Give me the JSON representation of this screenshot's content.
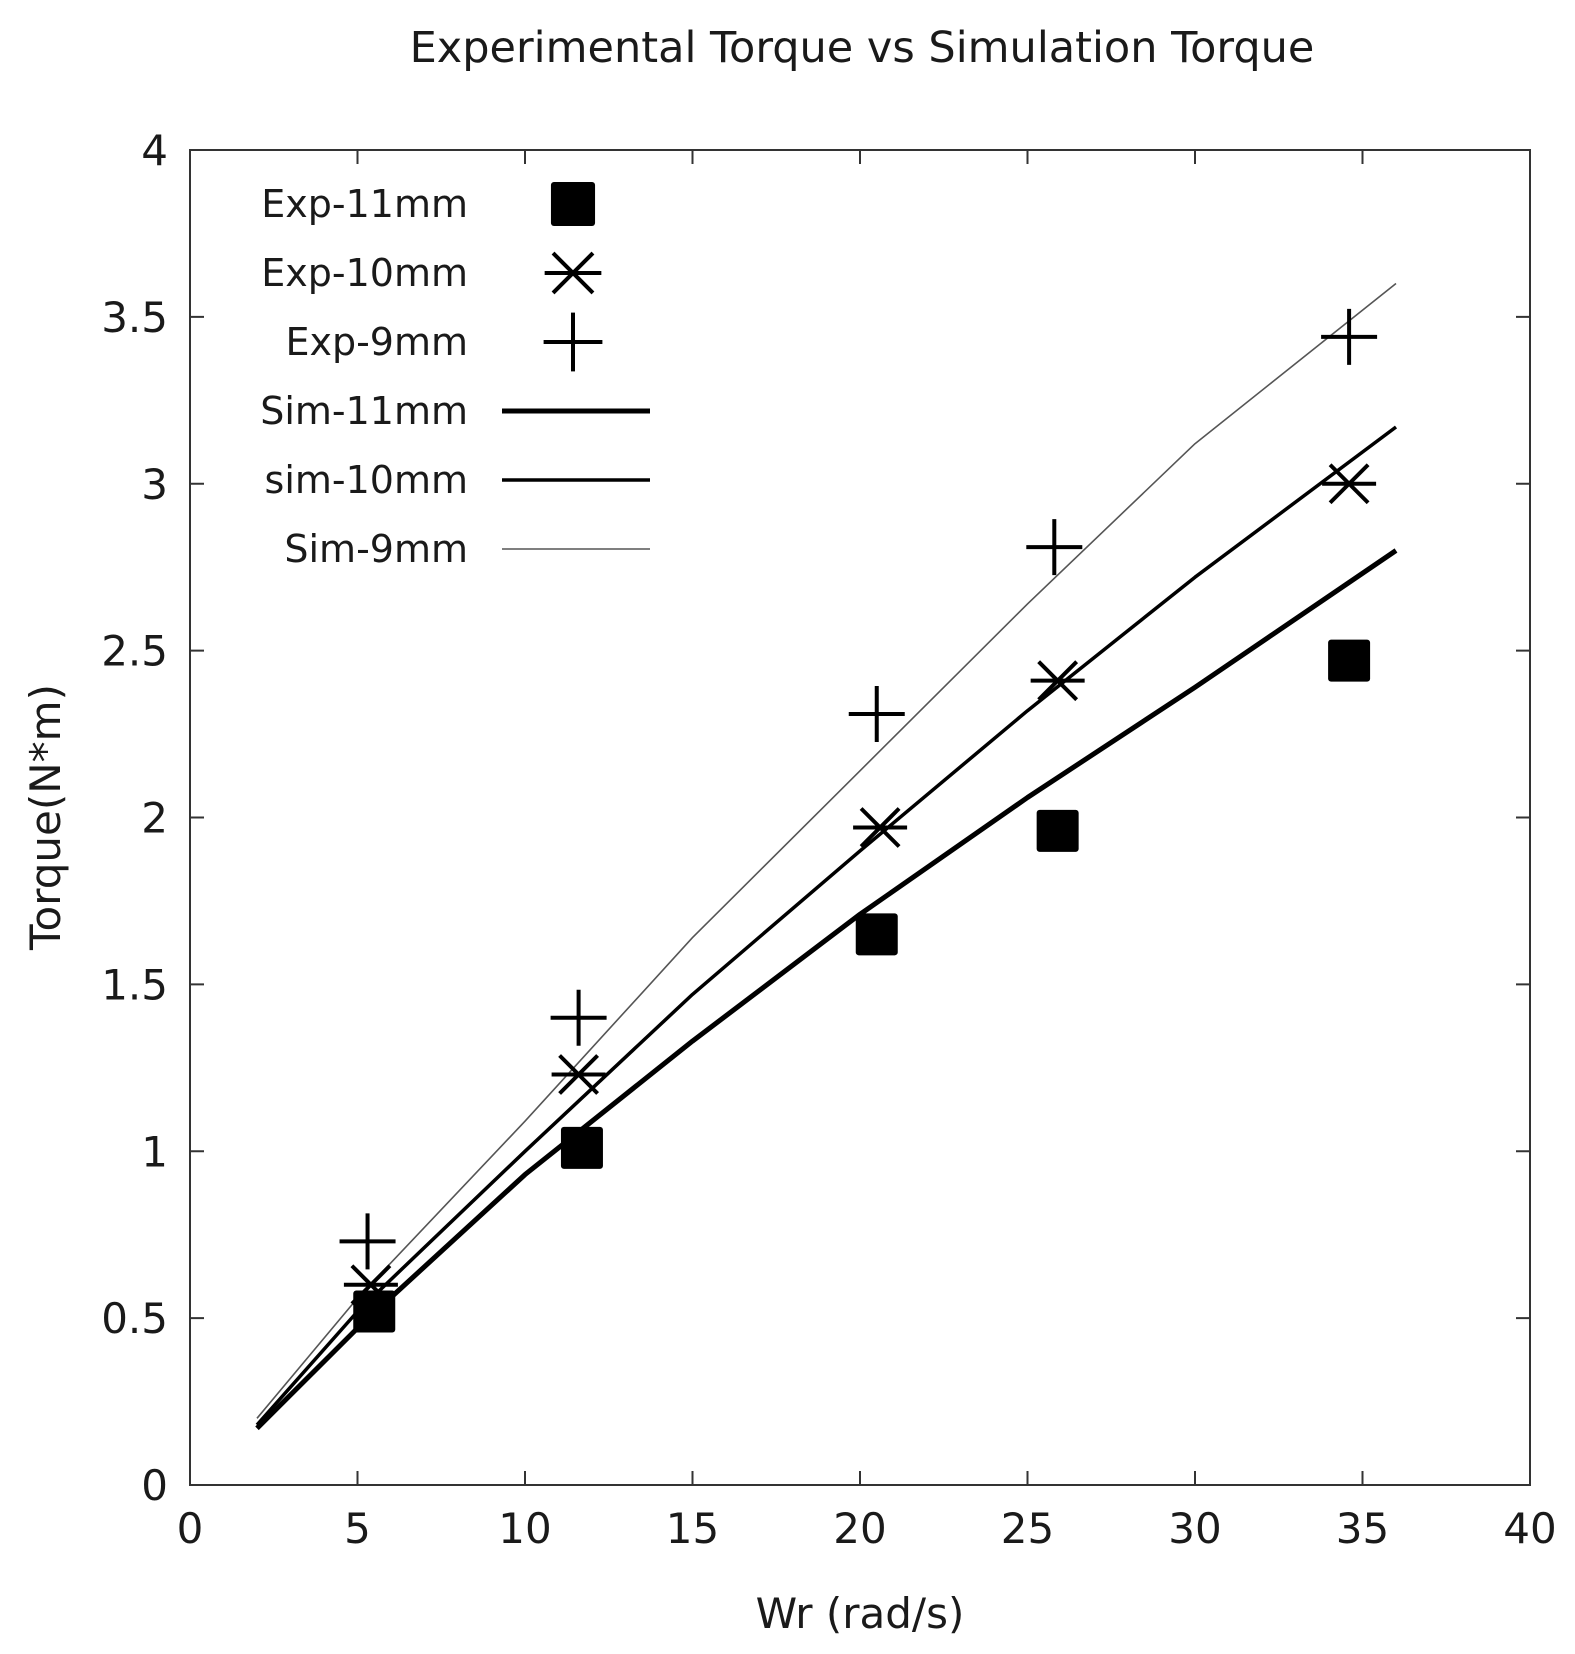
{
  "chart_data": {
    "type": "scatter",
    "title": "Experimental Torque vs Simulation Torque",
    "xlabel": "Wr (rad/s)",
    "ylabel": "Torque(N*m)",
    "xlim": [
      0,
      40
    ],
    "ylim": [
      0,
      4
    ],
    "xticks": [
      0,
      5,
      10,
      15,
      20,
      25,
      30,
      35,
      40
    ],
    "yticks": [
      0,
      0.5,
      1,
      1.5,
      2,
      2.5,
      3,
      3.5,
      4
    ],
    "xtick_labels": [
      "0",
      "5",
      "10",
      "15",
      "20",
      "25",
      "30",
      "35",
      "40"
    ],
    "ytick_labels": [
      "0",
      "0.5",
      "1",
      "1.5",
      "2",
      "2.5",
      "3",
      "3.5",
      "4"
    ],
    "grid": false,
    "legend_position": "top-left",
    "series": [
      {
        "name": "Exp-11mm",
        "kind": "marker",
        "marker": "square",
        "x": [
          5.5,
          11.7,
          20.5,
          25.9,
          34.6
        ],
        "y": [
          0.52,
          1.01,
          1.65,
          1.96,
          2.47
        ]
      },
      {
        "name": "Exp-10mm",
        "kind": "marker",
        "marker": "asterisk",
        "x": [
          5.4,
          11.6,
          20.6,
          25.9,
          34.6
        ],
        "y": [
          0.6,
          1.23,
          1.97,
          2.41,
          3.0
        ]
      },
      {
        "name": "Exp-9mm",
        "kind": "marker",
        "marker": "plus",
        "x": [
          5.3,
          11.6,
          20.5,
          25.8,
          34.6
        ],
        "y": [
          0.73,
          1.4,
          2.31,
          2.81,
          3.44
        ]
      },
      {
        "name": "Sim-11mm",
        "kind": "line",
        "weight": "thick",
        "x": [
          2,
          5,
          10,
          15,
          20,
          25,
          30,
          36
        ],
        "y": [
          0.17,
          0.47,
          0.93,
          1.33,
          1.71,
          2.06,
          2.39,
          2.8
        ]
      },
      {
        "name": "sim-10mm",
        "kind": "line",
        "weight": "medium",
        "x": [
          2,
          5,
          10,
          15,
          20,
          25,
          30,
          36
        ],
        "y": [
          0.18,
          0.52,
          1.0,
          1.47,
          1.9,
          2.32,
          2.72,
          3.17
        ]
      },
      {
        "name": "Sim-9mm",
        "kind": "line",
        "weight": "thin",
        "x": [
          2,
          5,
          10,
          15,
          20,
          25,
          30,
          36
        ],
        "y": [
          0.2,
          0.56,
          1.09,
          1.64,
          2.14,
          2.64,
          3.12,
          3.6
        ]
      }
    ]
  }
}
